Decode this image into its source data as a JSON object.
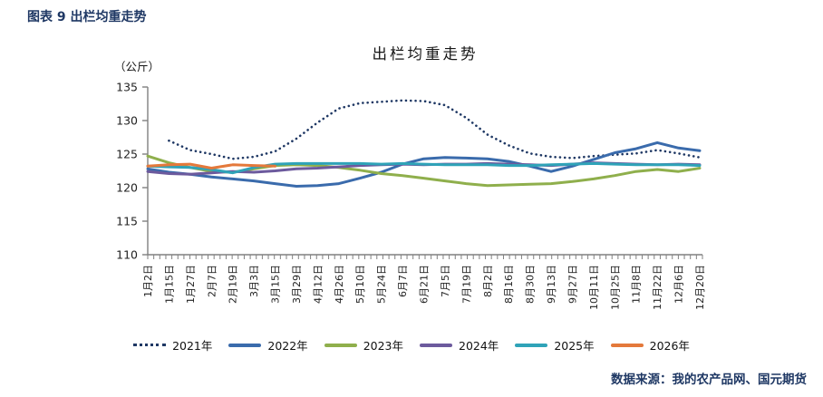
{
  "header": {
    "title": "图表 9 出栏均重走势"
  },
  "footer": {
    "source": "数据来源：我的农产品网、国元期货"
  },
  "chart_data": {
    "type": "line",
    "title": "出栏均重走势",
    "y_unit_label": "（公斤）",
    "xlabel": "",
    "ylabel": "公斤",
    "ylim": [
      110,
      135
    ],
    "yticks": [
      110,
      115,
      120,
      125,
      130,
      135
    ],
    "grid": false,
    "legend_position": "bottom",
    "axis_color": "#808080",
    "categories": [
      "1月2日",
      "1月15日",
      "1月27日",
      "2月7日",
      "2月19日",
      "3月3日",
      "3月15日",
      "3月29日",
      "4月12日",
      "4月26日",
      "5月10日",
      "5月24日",
      "6月7日",
      "6月21日",
      "7月5日",
      "7月19日",
      "8月2日",
      "8月16日",
      "8月30日",
      "9月13日",
      "9月27日",
      "10月11日",
      "10月25日",
      "11月8日",
      "11月22日",
      "12月6日",
      "12月20日"
    ],
    "series": [
      {
        "name": "2021年",
        "color": "#1f3864",
        "style": "dotted",
        "values": [
          null,
          127.0,
          125.6,
          125.0,
          124.3,
          124.6,
          125.4,
          127.3,
          129.7,
          131.8,
          132.6,
          132.8,
          133.0,
          132.9,
          132.3,
          130.4,
          127.9,
          126.3,
          125.1,
          124.6,
          124.4,
          124.7,
          124.9,
          125.1,
          125.6,
          125.1,
          124.5
        ]
      },
      {
        "name": "2022年",
        "color": "#3a6bac",
        "style": "solid",
        "values": [
          122.8,
          122.3,
          122.0,
          121.6,
          121.3,
          121.0,
          120.6,
          120.2,
          120.3,
          120.6,
          121.4,
          122.3,
          123.5,
          124.3,
          124.5,
          124.4,
          124.3,
          123.9,
          123.2,
          122.4,
          123.2,
          124.2,
          125.2,
          125.8,
          126.7,
          125.9,
          125.5
        ]
      },
      {
        "name": "2023年",
        "color": "#8faf4c",
        "style": "solid",
        "values": [
          124.7,
          123.7,
          123.0,
          122.4,
          122.3,
          122.8,
          123.3,
          123.4,
          123.3,
          123.0,
          122.6,
          122.1,
          121.8,
          121.4,
          121.0,
          120.6,
          120.3,
          120.4,
          120.5,
          120.6,
          120.9,
          121.3,
          121.8,
          122.4,
          122.7,
          122.4,
          122.9
        ]
      },
      {
        "name": "2024年",
        "color": "#6c5a9d",
        "style": "solid",
        "values": [
          122.4,
          122.1,
          122.0,
          122.2,
          122.4,
          122.3,
          122.5,
          122.8,
          122.9,
          123.1,
          123.3,
          123.4,
          123.5,
          123.4,
          123.5,
          123.5,
          123.6,
          123.5,
          123.4,
          123.3,
          123.5,
          123.7,
          123.6,
          123.5,
          123.4,
          123.5,
          123.4
        ]
      },
      {
        "name": "2025年",
        "color": "#2fa3b8",
        "style": "solid",
        "values": [
          123.2,
          123.1,
          123.0,
          122.7,
          122.2,
          123.0,
          123.5,
          123.6,
          123.6,
          123.6,
          123.6,
          123.5,
          123.6,
          123.5,
          123.4,
          123.4,
          123.4,
          123.3,
          123.3,
          123.4,
          123.5,
          123.6,
          123.5,
          123.4,
          123.4,
          123.4,
          123.3
        ]
      },
      {
        "name": "2026年",
        "color": "#e4793b",
        "style": "solid",
        "values": [
          123.2,
          123.4,
          123.5,
          122.9,
          123.4,
          123.3,
          123.2,
          null,
          null,
          null,
          null,
          null,
          null,
          null,
          null,
          null,
          null,
          null,
          null,
          null,
          null,
          null,
          null,
          null,
          null,
          null,
          null
        ]
      }
    ]
  }
}
